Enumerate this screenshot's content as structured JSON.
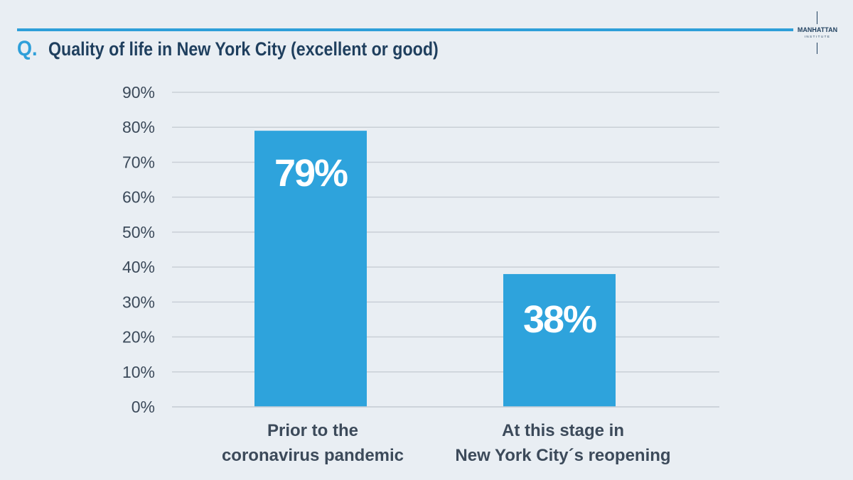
{
  "header": {
    "prefix": "Q.",
    "question": "Quality of life in New York City (excellent or good)"
  },
  "logo": {
    "name": "MANHATTAN",
    "sub": "INSTITUTE"
  },
  "colors": {
    "accent": "#2e9fd9",
    "bar": "#2ea3dc",
    "title": "#1f3f5e",
    "grid": "#c9cfd6",
    "background": "#e9eef3"
  },
  "chart_data": {
    "type": "bar",
    "title": "Quality of life in New York City (excellent or good)",
    "xlabel": "",
    "ylabel": "",
    "categories": [
      [
        "Prior to the",
        "coronavirus pandemic"
      ],
      [
        "At this stage in",
        "New York City´s reopening"
      ]
    ],
    "values": [
      79,
      38
    ],
    "value_labels": [
      "79%",
      "38%"
    ],
    "ylim": [
      0,
      90
    ],
    "yticks": [
      0,
      10,
      20,
      30,
      40,
      50,
      60,
      70,
      80,
      90
    ],
    "ytick_labels": [
      "0%",
      "10%",
      "20%",
      "30%",
      "40%",
      "50%",
      "60%",
      "70%",
      "80%",
      "90%"
    ],
    "grid": true,
    "legend": "none"
  }
}
